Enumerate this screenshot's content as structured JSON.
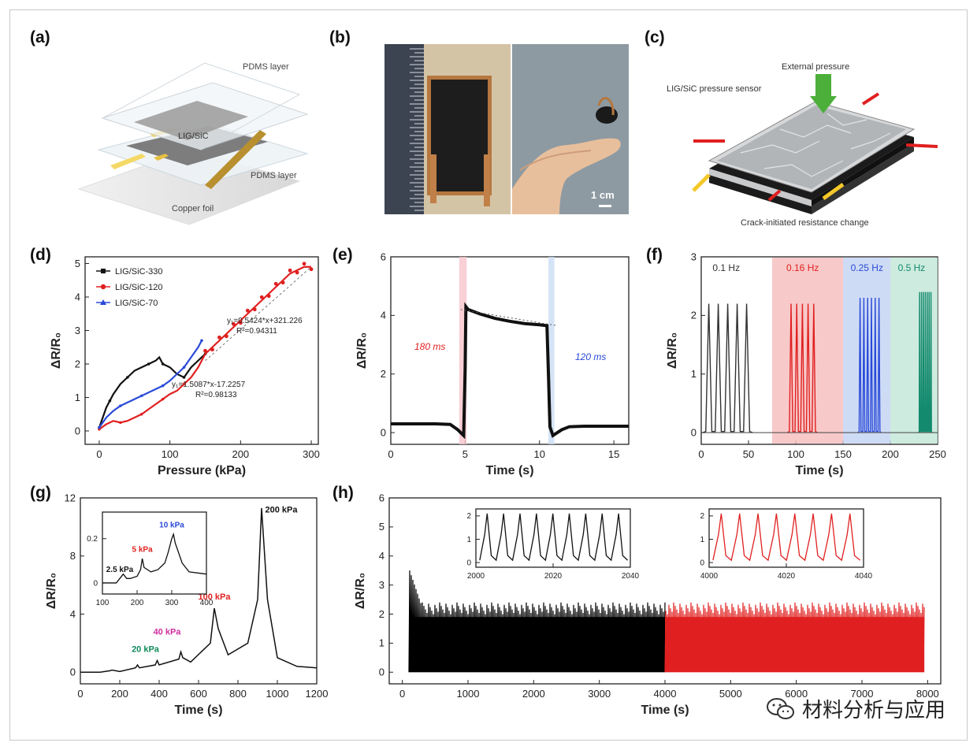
{
  "panel_labels": {
    "a": "(a)",
    "b": "(b)",
    "c": "(c)",
    "d": "(d)",
    "e": "(e)",
    "f": "(f)",
    "g": "(g)",
    "h": "(h)"
  },
  "panel_a": {
    "top_layer": "PDMS layer",
    "middle": "LIG/SiC",
    "bottom_layer": "PDMS layer",
    "foil": "Copper foil"
  },
  "panel_b": {
    "scale_bar": "1 cm"
  },
  "panel_c": {
    "pressure": "External pressure",
    "sensor": "LIG/SiC pressure sensor",
    "caption": "Crack-initiated resistance change"
  },
  "watermark": {
    "text": "材料分析与应用",
    "icon": "wechat-icon"
  },
  "chart_data": [
    {
      "id": "d",
      "type": "scatter",
      "xlabel": "Pressure (kPa)",
      "ylabel": "ΔR/R₀",
      "xlim": [
        -20,
        310
      ],
      "ylim": [
        -0.4,
        5.2
      ],
      "xticks": [
        0,
        100,
        200,
        300
      ],
      "yticks": [
        0,
        1,
        2,
        3,
        4,
        5
      ],
      "legend": [
        "LIG/SiC-330",
        "LIG/SiC-120",
        "LIG/SiC-70"
      ],
      "legend_position": "top-left",
      "annotations": [
        "y₁=0.5424*x+321.226",
        "R²=0.94311",
        "y₁=1.5087*x-17.2257",
        "R²=0.98133"
      ],
      "series": [
        {
          "name": "LIG/SiC-330",
          "color": "#111111",
          "x": [
            0,
            5,
            10,
            15,
            20,
            30,
            40,
            50,
            60,
            70,
            80,
            85,
            90,
            100,
            110,
            120,
            130,
            140,
            150
          ],
          "y": [
            0.1,
            0.4,
            0.7,
            0.9,
            1.1,
            1.4,
            1.6,
            1.8,
            1.9,
            2.0,
            2.1,
            2.2,
            2.0,
            1.9,
            1.7,
            1.6,
            1.9,
            2.1,
            2.3
          ]
        },
        {
          "name": "LIG/SiC-120",
          "color": "#e02020",
          "x": [
            0,
            10,
            20,
            30,
            40,
            50,
            60,
            70,
            80,
            90,
            100,
            110,
            120,
            130,
            140,
            150,
            160,
            170,
            180,
            190,
            200,
            210,
            220,
            230,
            240,
            250,
            260,
            270,
            280,
            290,
            300
          ],
          "y": [
            0.05,
            0.2,
            0.3,
            0.25,
            0.3,
            0.4,
            0.5,
            0.65,
            0.8,
            0.95,
            1.1,
            1.2,
            1.4,
            1.6,
            1.9,
            2.3,
            2.5,
            2.7,
            2.9,
            3.1,
            3.3,
            3.5,
            3.7,
            3.9,
            4.1,
            4.3,
            4.5,
            4.7,
            4.8,
            4.9,
            4.9
          ]
        },
        {
          "name": "LIG/SiC-70",
          "color": "#2a4ad8",
          "x": [
            0,
            10,
            20,
            30,
            40,
            50,
            60,
            70,
            80,
            90,
            100,
            110,
            120,
            130,
            140,
            145
          ],
          "y": [
            0.1,
            0.4,
            0.6,
            0.75,
            0.85,
            0.95,
            1.05,
            1.15,
            1.25,
            1.35,
            1.5,
            1.7,
            1.9,
            2.2,
            2.5,
            2.7
          ]
        }
      ]
    },
    {
      "id": "e",
      "type": "line",
      "xlabel": "Time (s)",
      "ylabel": "ΔR/R₀",
      "xlim": [
        0,
        16
      ],
      "ylim": [
        -0.4,
        6
      ],
      "xticks": [
        0,
        5,
        10,
        15
      ],
      "yticks": [
        0,
        2,
        4,
        6
      ],
      "annotations": [
        "180 ms",
        "120 ms"
      ],
      "x": [
        0,
        1,
        2,
        3,
        4,
        4.5,
        4.9,
        5.0,
        5.05,
        5.2,
        6,
        7,
        8,
        9,
        10,
        10.5,
        10.6,
        10.7,
        10.9,
        11.5,
        12,
        13,
        14,
        15,
        16
      ],
      "y": [
        0.3,
        0.3,
        0.3,
        0.3,
        0.28,
        0.1,
        -0.1,
        2.2,
        4.3,
        4.2,
        4.05,
        3.9,
        3.8,
        3.72,
        3.68,
        3.65,
        2.0,
        0.2,
        -0.1,
        0.1,
        0.2,
        0.22,
        0.22,
        0.22,
        0.22
      ]
    },
    {
      "id": "f",
      "type": "line",
      "xlabel": "Time (s)",
      "ylabel": "ΔR/R₀",
      "xlim": [
        0,
        250
      ],
      "ylim": [
        -0.2,
        3
      ],
      "xticks": [
        0,
        50,
        100,
        150,
        200,
        250
      ],
      "yticks": [
        0,
        1,
        2,
        3
      ],
      "annotations": [
        "0.1 Hz",
        "0.16 Hz",
        "0.25 Hz",
        "0.5 Hz"
      ],
      "bands": [
        {
          "x0": 75,
          "x1": 150,
          "color": "#f7c0c0"
        },
        {
          "x0": 150,
          "x1": 200,
          "color": "#c5d5f3"
        },
        {
          "x0": 200,
          "x1": 250,
          "color": "#c4e8d8"
        }
      ],
      "series": [
        {
          "name": "0.1 Hz",
          "color": "#333333",
          "peaks": [
            8,
            18,
            28,
            38,
            48
          ],
          "peak": 2.2
        },
        {
          "name": "0.16 Hz",
          "color": "#e02020",
          "peaks": [
            95,
            101,
            107,
            113,
            119
          ],
          "peak": 2.2
        },
        {
          "name": "0.25 Hz",
          "color": "#2a4ad8",
          "peaks": [
            168,
            172,
            176,
            180,
            184,
            188
          ],
          "peak": 2.3
        },
        {
          "name": "0.5 Hz",
          "color": "#138a6e",
          "peaks": [
            231,
            233,
            235,
            237,
            239,
            241,
            243
          ],
          "peak": 2.4
        }
      ]
    },
    {
      "id": "g",
      "type": "line",
      "xlabel": "Time (s)",
      "ylabel": "ΔR/R₀",
      "xlim": [
        0,
        1200
      ],
      "ylim": [
        -0.8,
        12
      ],
      "xticks": [
        0,
        200,
        400,
        600,
        800,
        1000,
        1200
      ],
      "yticks": [
        0,
        4,
        8,
        12
      ],
      "annotations": [
        "20 kPa",
        "40 kPa",
        "100 kPa",
        "200 kPa"
      ],
      "x": [
        0,
        100,
        150,
        160,
        200,
        280,
        290,
        300,
        380,
        390,
        400,
        500,
        510,
        520,
        560,
        660,
        680,
        700,
        750,
        850,
        900,
        920,
        950,
        1000,
        1100,
        1200
      ],
      "y": [
        0,
        0,
        0.1,
        0.15,
        0.05,
        0.3,
        0.5,
        0.3,
        0.5,
        0.8,
        0.5,
        0.9,
        1.4,
        1.0,
        0.7,
        2.0,
        4.4,
        3.0,
        1.2,
        2.0,
        5.0,
        11.3,
        5.0,
        1.0,
        0.4,
        0.3
      ],
      "inset": {
        "xlim": [
          100,
          400
        ],
        "ylim": [
          -0.05,
          0.32
        ],
        "xticks": [
          100,
          200,
          300,
          400
        ],
        "yticks": [
          0.0,
          0.2
        ],
        "annotations": [
          "2.5 kPa",
          "5 kPa",
          "10 kPa"
        ],
        "x": [
          100,
          140,
          150,
          160,
          170,
          180,
          200,
          210,
          215,
          220,
          240,
          260,
          280,
          290,
          300,
          305,
          310,
          330,
          350,
          400
        ],
        "y": [
          0.0,
          0.0,
          0.02,
          0.04,
          0.02,
          0.02,
          0.03,
          0.06,
          0.11,
          0.07,
          0.05,
          0.06,
          0.09,
          0.14,
          0.2,
          0.22,
          0.18,
          0.09,
          0.05,
          0.04
        ]
      }
    },
    {
      "id": "h",
      "type": "line",
      "xlabel": "Time (s)",
      "ylabel": "ΔR/R₀",
      "xlim": [
        -200,
        8200
      ],
      "ylim": [
        -0.4,
        6
      ],
      "xticks": [
        0,
        1000,
        2000,
        3000,
        4000,
        5000,
        6000,
        7000,
        8000
      ],
      "yticks": [
        0,
        1,
        2,
        3,
        4,
        5,
        6
      ],
      "series": [
        {
          "name": "",
          "color": "#000000",
          "x0": 100,
          "x1": 4000
        },
        {
          "name": "",
          "color": "#e02020",
          "x0": 4000,
          "x1": 7950
        }
      ],
      "insets": [
        {
          "xlim": [
            2000,
            2040
          ],
          "ylim": [
            -0.2,
            2.3
          ],
          "xticks": [
            2000,
            2020,
            2040
          ],
          "yticks": [
            0,
            1,
            2
          ],
          "color": "#111111",
          "cycles": 9
        },
        {
          "xlim": [
            4000,
            4040
          ],
          "ylim": [
            -0.2,
            2.3
          ],
          "xticks": [
            4000,
            4020,
            4040
          ],
          "yticks": [
            0,
            1,
            2
          ],
          "color": "#e02020",
          "cycles": 8
        }
      ]
    }
  ]
}
